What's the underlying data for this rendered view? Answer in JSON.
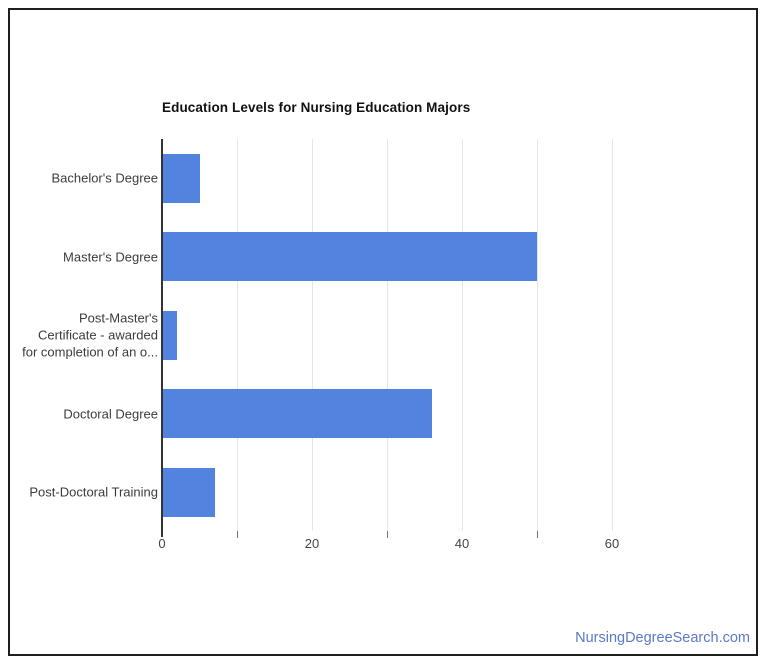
{
  "chart_data": {
    "type": "bar",
    "orientation": "horizontal",
    "title": "Education Levels for Nursing Education Majors",
    "categories": [
      "Bachelor's Degree",
      "Master's Degree",
      "Post-Master's Certificate - awarded for completion of an o...",
      "Doctoral Degree",
      "Post-Doctoral Training"
    ],
    "category_display_lines": [
      [
        "Bachelor's Degree"
      ],
      [
        "Master's Degree"
      ],
      [
        "Post-Master's",
        "Certificate - awarded",
        "for completion of an o..."
      ],
      [
        "Doctoral Degree"
      ],
      [
        "Post-Doctoral Training"
      ]
    ],
    "values": [
      5,
      50,
      2,
      36,
      7
    ],
    "xlabel": "",
    "ylabel": "",
    "xlim": [
      0,
      75
    ],
    "x_tick_labels": [
      "0",
      "20",
      "40",
      "60"
    ],
    "x_ticks": [
      0,
      20,
      40,
      60
    ],
    "x_minor_ticks": [
      10,
      30,
      50
    ],
    "gridlines": [
      10,
      20,
      30,
      40,
      50,
      60
    ],
    "grid": "vertical",
    "legend": "none"
  },
  "footer": {
    "watermark": "NursingDegreeSearch.com"
  },
  "colors": {
    "bar": "#5183df",
    "gridline": "#e6e6e6",
    "axis_line": "#333333",
    "tick_label": "#444444",
    "category_label": "#3c3c3c",
    "title": "#111111",
    "watermark": "#5b7ac7",
    "frame_border": "#1f1f1f",
    "background": "#ffffff"
  }
}
